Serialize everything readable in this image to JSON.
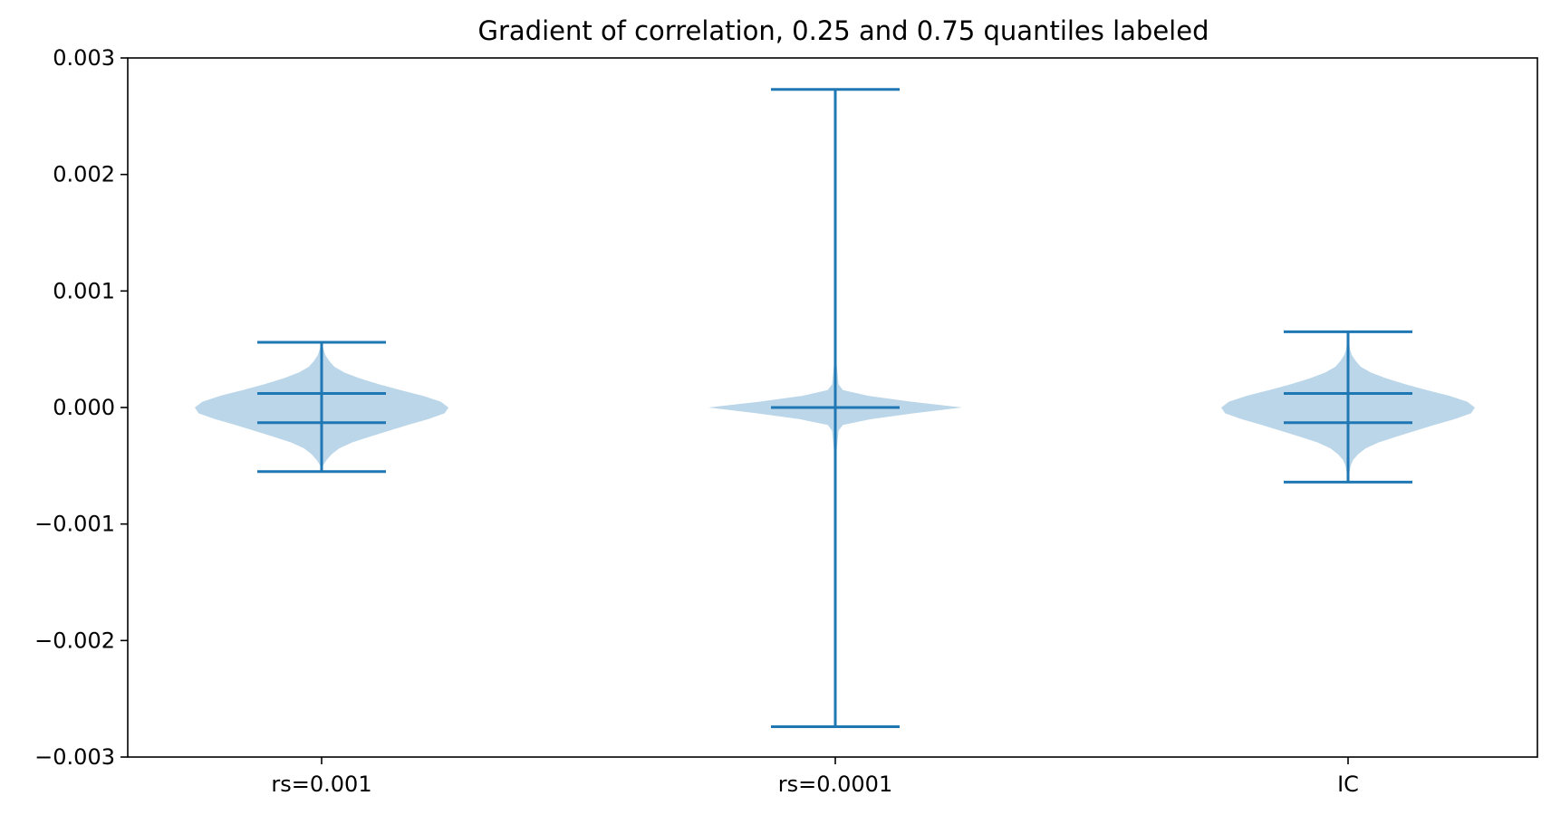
{
  "chart_data": {
    "type": "violin",
    "title": "Gradient of correlation, 0.25 and 0.75 quantiles labeled",
    "xlabel": "",
    "ylabel": "",
    "categories": [
      "rs=0.001",
      "rs=0.0001",
      "IC"
    ],
    "ylim": [
      -0.003,
      0.003
    ],
    "yticks": [
      -0.003,
      -0.002,
      -0.001,
      0.0,
      0.001,
      0.002,
      0.003
    ],
    "yticklabels": [
      "−0.003",
      "−0.002",
      "−0.001",
      "0.000",
      "0.001",
      "0.002",
      "0.003"
    ],
    "grid": false,
    "colors": {
      "line": "#1f77b4",
      "body": "#1f77b4",
      "body_alpha": 0.3
    },
    "violins": [
      {
        "name": "rs=0.001",
        "min": -0.00055,
        "max": 0.00056,
        "quantiles": [
          -0.00013,
          0.00012
        ],
        "profile": [
          [
            -0.00055,
            0.0
          ],
          [
            -0.0005,
            0.01
          ],
          [
            -0.00045,
            0.04
          ],
          [
            -0.0004,
            0.08
          ],
          [
            -0.00035,
            0.14
          ],
          [
            -0.0003,
            0.24
          ],
          [
            -0.00025,
            0.38
          ],
          [
            -0.0002,
            0.53
          ],
          [
            -0.00015,
            0.68
          ],
          [
            -0.0001,
            0.84
          ],
          [
            -5e-05,
            0.97
          ],
          [
            0.0,
            1.0
          ],
          [
            5e-05,
            0.94
          ],
          [
            0.0001,
            0.8
          ],
          [
            0.00015,
            0.62
          ],
          [
            0.0002,
            0.45
          ],
          [
            0.00025,
            0.3
          ],
          [
            0.0003,
            0.18
          ],
          [
            0.00035,
            0.1
          ],
          [
            0.0004,
            0.06
          ],
          [
            0.00045,
            0.03
          ],
          [
            0.0005,
            0.015
          ],
          [
            0.00056,
            0.0
          ]
        ]
      },
      {
        "name": "rs=0.0001",
        "min": -0.00274,
        "max": 0.00273,
        "quantiles": [
          0.0,
          0.0
        ],
        "profile": [
          [
            -0.00274,
            0.0
          ],
          [
            -0.0008,
            0.003
          ],
          [
            -0.0004,
            0.008
          ],
          [
            -0.0002,
            0.025
          ],
          [
            -0.00015,
            0.06
          ],
          [
            -0.0001,
            0.28
          ],
          [
            -5e-05,
            0.62
          ],
          [
            0.0,
            1.0
          ],
          [
            5e-05,
            0.6
          ],
          [
            0.0001,
            0.26
          ],
          [
            0.00015,
            0.06
          ],
          [
            0.0002,
            0.025
          ],
          [
            0.0004,
            0.008
          ],
          [
            0.0008,
            0.003
          ],
          [
            0.00273,
            0.0
          ]
        ]
      },
      {
        "name": "IC",
        "min": -0.00064,
        "max": 0.00065,
        "quantiles": [
          -0.00013,
          0.00012
        ],
        "profile": [
          [
            -0.00064,
            0.0
          ],
          [
            -0.0006,
            0.005
          ],
          [
            -0.0005,
            0.02
          ],
          [
            -0.00045,
            0.04
          ],
          [
            -0.0004,
            0.08
          ],
          [
            -0.00035,
            0.14
          ],
          [
            -0.0003,
            0.24
          ],
          [
            -0.00025,
            0.38
          ],
          [
            -0.0002,
            0.53
          ],
          [
            -0.00015,
            0.68
          ],
          [
            -0.0001,
            0.84
          ],
          [
            -5e-05,
            0.97
          ],
          [
            0.0,
            1.0
          ],
          [
            5e-05,
            0.94
          ],
          [
            0.0001,
            0.8
          ],
          [
            0.00015,
            0.62
          ],
          [
            0.0002,
            0.45
          ],
          [
            0.00025,
            0.3
          ],
          [
            0.0003,
            0.18
          ],
          [
            0.00035,
            0.1
          ],
          [
            0.0004,
            0.06
          ],
          [
            0.00045,
            0.03
          ],
          [
            0.0005,
            0.015
          ],
          [
            0.00065,
            0.0
          ]
        ]
      }
    ]
  }
}
